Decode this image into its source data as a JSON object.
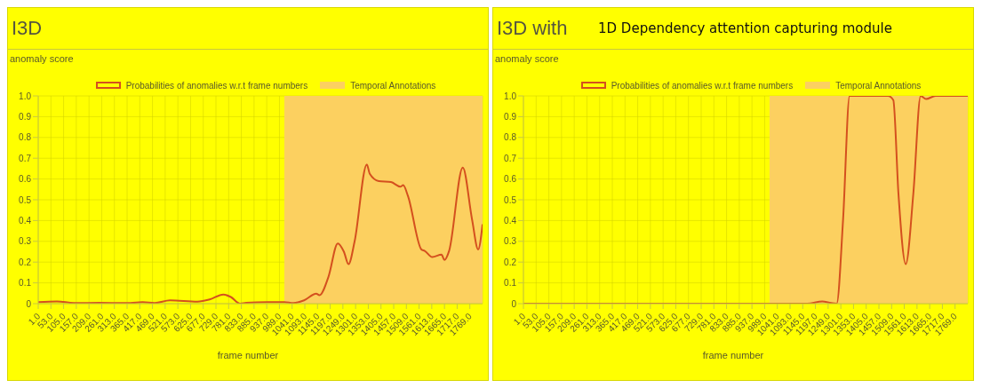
{
  "chart_data": [
    {
      "type": "line",
      "title": "I3D",
      "ylabel": "anomaly score",
      "xlabel": "frame number",
      "grid": true,
      "legend": "top",
      "xlim": [
        1,
        1821
      ],
      "xticks": [
        {
          "value": 1,
          "label": "1.0"
        },
        {
          "value": 53,
          "label": "53.0"
        },
        {
          "value": 105,
          "label": "105.0"
        },
        {
          "value": 157,
          "label": "157.0"
        },
        {
          "value": 209,
          "label": "209.0"
        },
        {
          "value": 261,
          "label": "261.0"
        },
        {
          "value": 313,
          "label": "313.0"
        },
        {
          "value": 365,
          "label": "365.0"
        },
        {
          "value": 417,
          "label": "417.0"
        },
        {
          "value": 469,
          "label": "469.0"
        },
        {
          "value": 521,
          "label": "521.0"
        },
        {
          "value": 573,
          "label": "573.0"
        },
        {
          "value": 625,
          "label": "625.0"
        },
        {
          "value": 677,
          "label": "677.0"
        },
        {
          "value": 729,
          "label": "729.0"
        },
        {
          "value": 781,
          "label": "781.0"
        },
        {
          "value": 833,
          "label": "833.0"
        },
        {
          "value": 885,
          "label": "885.0"
        },
        {
          "value": 937,
          "label": "937.0"
        },
        {
          "value": 989,
          "label": "989.0"
        },
        {
          "value": 1041,
          "label": "1041.0"
        },
        {
          "value": 1093,
          "label": "1093.0"
        },
        {
          "value": 1145,
          "label": "1145.0"
        },
        {
          "value": 1197,
          "label": "1197.0"
        },
        {
          "value": 1249,
          "label": "1249.0"
        },
        {
          "value": 1301,
          "label": "1301.0"
        },
        {
          "value": 1353,
          "label": "1353.0"
        },
        {
          "value": 1405,
          "label": "1405.0"
        },
        {
          "value": 1457,
          "label": "1457.0"
        },
        {
          "value": 1509,
          "label": "1509.0"
        },
        {
          "value": 1561,
          "label": "1561.0"
        },
        {
          "value": 1613,
          "label": "1613.0"
        },
        {
          "value": 1665,
          "label": "1665.0"
        },
        {
          "value": 1717,
          "label": "1717.0"
        },
        {
          "value": 1769,
          "label": "1769.0"
        }
      ],
      "ylim": [
        0,
        1
      ],
      "yticks": [
        0,
        0.1,
        0.2,
        0.3,
        0.4,
        0.5,
        0.6,
        0.7,
        0.8,
        0.9,
        {
          "value": 1,
          "label": "1.0"
        }
      ],
      "x": [
        1,
        78,
        147,
        253,
        378,
        428,
        478,
        541,
        653,
        703,
        759,
        790,
        828,
        853,
        940,
        1009,
        1046,
        1090,
        1140,
        1153,
        1190,
        1228,
        1253,
        1272,
        1297,
        1347,
        1359,
        1396,
        1446,
        1484,
        1496,
        1515,
        1571,
        1584,
        1615,
        1653,
        1665,
        1684,
        1740,
        1778,
        1803,
        1821
      ],
      "series": [
        {
          "name": "Probabilities of anomalies w.r.t frame numbers",
          "color": "#d4501e",
          "values": [
            0.007,
            0.011,
            0.003,
            0.004,
            0.003,
            0.007,
            0.003,
            0.016,
            0.01,
            0.02,
            0.044,
            0.032,
            0,
            0.004,
            0.008,
            0.008,
            0.003,
            0.016,
            0.048,
            0.041,
            0.13,
            0.29,
            0.25,
            0.19,
            0.3,
            0.67,
            0.625,
            0.59,
            0.585,
            0.563,
            0.57,
            0.52,
            0.26,
            0.254,
            0.224,
            0.236,
            0.21,
            0.254,
            0.655,
            0.405,
            0.261,
            0.382
          ]
        }
      ],
      "bands": [
        {
          "axis": "x",
          "from": 1009,
          "to": 1821,
          "label": "Temporal Annotations",
          "color": "#fcd060"
        }
      ]
    },
    {
      "type": "line",
      "title": "I3D with",
      "ylabel": "anomaly score",
      "xlabel": "frame number",
      "grid": true,
      "legend": "top",
      "annotations": [
        "1D Dependency attention capturing module"
      ],
      "xlim": [
        1,
        1821
      ],
      "xticks": [
        {
          "value": 1,
          "label": "1.0"
        },
        {
          "value": 53,
          "label": "53.0"
        },
        {
          "value": 105,
          "label": "105.0"
        },
        {
          "value": 157,
          "label": "157.0"
        },
        {
          "value": 209,
          "label": "209.0"
        },
        {
          "value": 261,
          "label": "261.0"
        },
        {
          "value": 313,
          "label": "313.0"
        },
        {
          "value": 365,
          "label": "365.0"
        },
        {
          "value": 417,
          "label": "417.0"
        },
        {
          "value": 469,
          "label": "469.0"
        },
        {
          "value": 521,
          "label": "521.0"
        },
        {
          "value": 573,
          "label": "573.0"
        },
        {
          "value": 625,
          "label": "625.0"
        },
        {
          "value": 677,
          "label": "677.0"
        },
        {
          "value": 729,
          "label": "729.0"
        },
        {
          "value": 781,
          "label": "781.0"
        },
        {
          "value": 833,
          "label": "833.0"
        },
        {
          "value": 885,
          "label": "885.0"
        },
        {
          "value": 937,
          "label": "937.0"
        },
        {
          "value": 989,
          "label": "989.0"
        },
        {
          "value": 1041,
          "label": "1041.0"
        },
        {
          "value": 1093,
          "label": "1093.0"
        },
        {
          "value": 1145,
          "label": "1145.0"
        },
        {
          "value": 1197,
          "label": "1197.0"
        },
        {
          "value": 1249,
          "label": "1249.0"
        },
        {
          "value": 1301,
          "label": "1301.0"
        },
        {
          "value": 1353,
          "label": "1353.0"
        },
        {
          "value": 1405,
          "label": "1405.0"
        },
        {
          "value": 1457,
          "label": "1457.0"
        },
        {
          "value": 1509,
          "label": "1509.0"
        },
        {
          "value": 1561,
          "label": "1561.0"
        },
        {
          "value": 1613,
          "label": "1613.0"
        },
        {
          "value": 1665,
          "label": "1665.0"
        },
        {
          "value": 1717,
          "label": "1717.0"
        },
        {
          "value": 1769,
          "label": "1769.0"
        }
      ],
      "ylim": [
        0,
        1
      ],
      "yticks": [
        0,
        0.1,
        0.2,
        0.3,
        0.4,
        0.5,
        0.6,
        0.7,
        0.8,
        0.9,
        {
          "value": 1,
          "label": "1.0"
        }
      ],
      "x": [
        1,
        1164,
        1225,
        1262,
        1284,
        1310,
        1337,
        1494,
        1516,
        1537,
        1567,
        1598,
        1628,
        1650,
        1689,
        1821
      ],
      "series": [
        {
          "name": "Probabilities of anomalies w.r.t frame numbers",
          "color": "#d4501e",
          "values": [
            0,
            0,
            0.011,
            0.003,
            0,
            0.4,
            1,
            1,
            0.98,
            0.53,
            0.19,
            0.53,
            1,
            0.985,
            1,
            1
          ]
        }
      ],
      "bands": [
        {
          "axis": "x",
          "from": 1009,
          "to": 1821,
          "label": "Temporal Annotations",
          "color": "#fcd060"
        }
      ]
    }
  ]
}
